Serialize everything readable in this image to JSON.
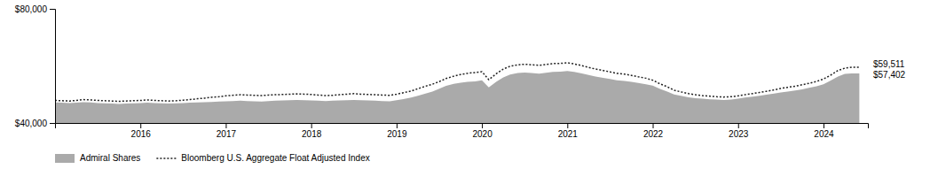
{
  "chart_data": {
    "type": "area",
    "x": [
      2015.0,
      2015.08,
      2015.17,
      2015.25,
      2015.33,
      2015.42,
      2015.5,
      2015.58,
      2015.67,
      2015.75,
      2015.83,
      2015.92,
      2016.0,
      2016.08,
      2016.17,
      2016.25,
      2016.33,
      2016.42,
      2016.5,
      2016.58,
      2016.67,
      2016.75,
      2016.83,
      2016.92,
      2017.0,
      2017.08,
      2017.17,
      2017.25,
      2017.33,
      2017.42,
      2017.5,
      2017.58,
      2017.67,
      2017.75,
      2017.83,
      2017.92,
      2018.0,
      2018.08,
      2018.17,
      2018.25,
      2018.33,
      2018.42,
      2018.5,
      2018.58,
      2018.67,
      2018.75,
      2018.83,
      2018.92,
      2019.0,
      2019.08,
      2019.17,
      2019.25,
      2019.33,
      2019.42,
      2019.5,
      2019.58,
      2019.67,
      2019.75,
      2019.83,
      2019.92,
      2020.0,
      2020.08,
      2020.17,
      2020.25,
      2020.33,
      2020.42,
      2020.5,
      2020.58,
      2020.67,
      2020.75,
      2020.83,
      2020.92,
      2021.0,
      2021.08,
      2021.17,
      2021.25,
      2021.33,
      2021.42,
      2021.5,
      2021.58,
      2021.67,
      2021.75,
      2021.83,
      2021.92,
      2022.0,
      2022.08,
      2022.17,
      2022.25,
      2022.33,
      2022.42,
      2022.5,
      2022.58,
      2022.67,
      2022.75,
      2022.83,
      2022.92,
      2023.0,
      2023.08,
      2023.17,
      2023.25,
      2023.33,
      2023.42,
      2023.5,
      2023.58,
      2023.67,
      2023.75,
      2023.83,
      2023.92,
      2024.0,
      2024.08,
      2024.17,
      2024.25,
      2024.33,
      2024.42
    ],
    "series": [
      {
        "name": "Admiral Shares",
        "type": "area",
        "color": "#aaaaaa",
        "values": [
          47200,
          47100,
          47000,
          47100,
          47300,
          47200,
          47000,
          46900,
          46800,
          46700,
          46800,
          46900,
          47000,
          47100,
          47000,
          46900,
          46800,
          46900,
          47000,
          47100,
          47200,
          47300,
          47400,
          47500,
          47600,
          47700,
          47800,
          47700,
          47600,
          47500,
          47700,
          47800,
          47900,
          48000,
          48100,
          48000,
          47900,
          47800,
          47700,
          47800,
          47900,
          48000,
          48100,
          48000,
          47900,
          47800,
          47700,
          47600,
          48000,
          48400,
          48900,
          49500,
          50200,
          51000,
          52000,
          53000,
          53700,
          54100,
          54400,
          54600,
          55000,
          52500,
          54500,
          56000,
          57000,
          57500,
          57700,
          57500,
          57300,
          57600,
          57900,
          58000,
          58200,
          57900,
          57400,
          56800,
          56300,
          55800,
          55400,
          55000,
          54700,
          54400,
          54000,
          53600,
          53100,
          52000,
          51000,
          50000,
          49500,
          49000,
          48700,
          48500,
          48300,
          48200,
          48100,
          48200,
          48500,
          48900,
          49200,
          49500,
          49900,
          50300,
          50700,
          51000,
          51400,
          51800,
          52300,
          52900,
          53600,
          54800,
          56300,
          57200,
          57402,
          57402
        ]
      },
      {
        "name": "Bloomberg U.S. Aggregate Float Adjusted Index",
        "type": "line",
        "color": "#222222",
        "line_style": "dotted",
        "values": [
          47900,
          47800,
          47700,
          47900,
          48200,
          48100,
          47900,
          47800,
          47700,
          47600,
          47700,
          47800,
          47900,
          48100,
          47900,
          47800,
          47700,
          47800,
          48000,
          48200,
          48500,
          48700,
          49000,
          49200,
          49500,
          49700,
          49900,
          49800,
          49700,
          49600,
          49800,
          49900,
          50000,
          50100,
          50200,
          50100,
          50000,
          49800,
          49600,
          49700,
          49900,
          50100,
          50300,
          50100,
          50000,
          49900,
          49800,
          49700,
          50100,
          50600,
          51200,
          52000,
          52800,
          53600,
          54500,
          55600,
          56400,
          57000,
          57400,
          57700,
          58000,
          55200,
          57300,
          58900,
          59900,
          60400,
          60600,
          60400,
          60200,
          60500,
          60800,
          60900,
          61100,
          60700,
          60100,
          59500,
          58900,
          58400,
          57900,
          57400,
          57100,
          56700,
          56200,
          55700,
          55000,
          53800,
          52700,
          51500,
          50900,
          50300,
          49900,
          49600,
          49400,
          49200,
          49100,
          49200,
          49500,
          49900,
          50300,
          50700,
          51100,
          51600,
          52100,
          52500,
          52900,
          53400,
          53900,
          54600,
          55400,
          56700,
          58400,
          59200,
          59511,
          59511
        ]
      }
    ],
    "xlim": [
      2015.0,
      2024.52
    ],
    "xticks": [
      2016,
      2017,
      2018,
      2019,
      2020,
      2021,
      2022,
      2023,
      2024
    ],
    "ylim": [
      40000,
      80000
    ],
    "yticks": [
      {
        "value": 40000,
        "label": "$40,000"
      },
      {
        "value": 80000,
        "label": "$80,000"
      }
    ],
    "annotations": [
      {
        "text": "$59,511",
        "y": 59511
      },
      {
        "text": "$57,402",
        "y": 57402
      }
    ],
    "grid": false,
    "legend": "bottom"
  }
}
